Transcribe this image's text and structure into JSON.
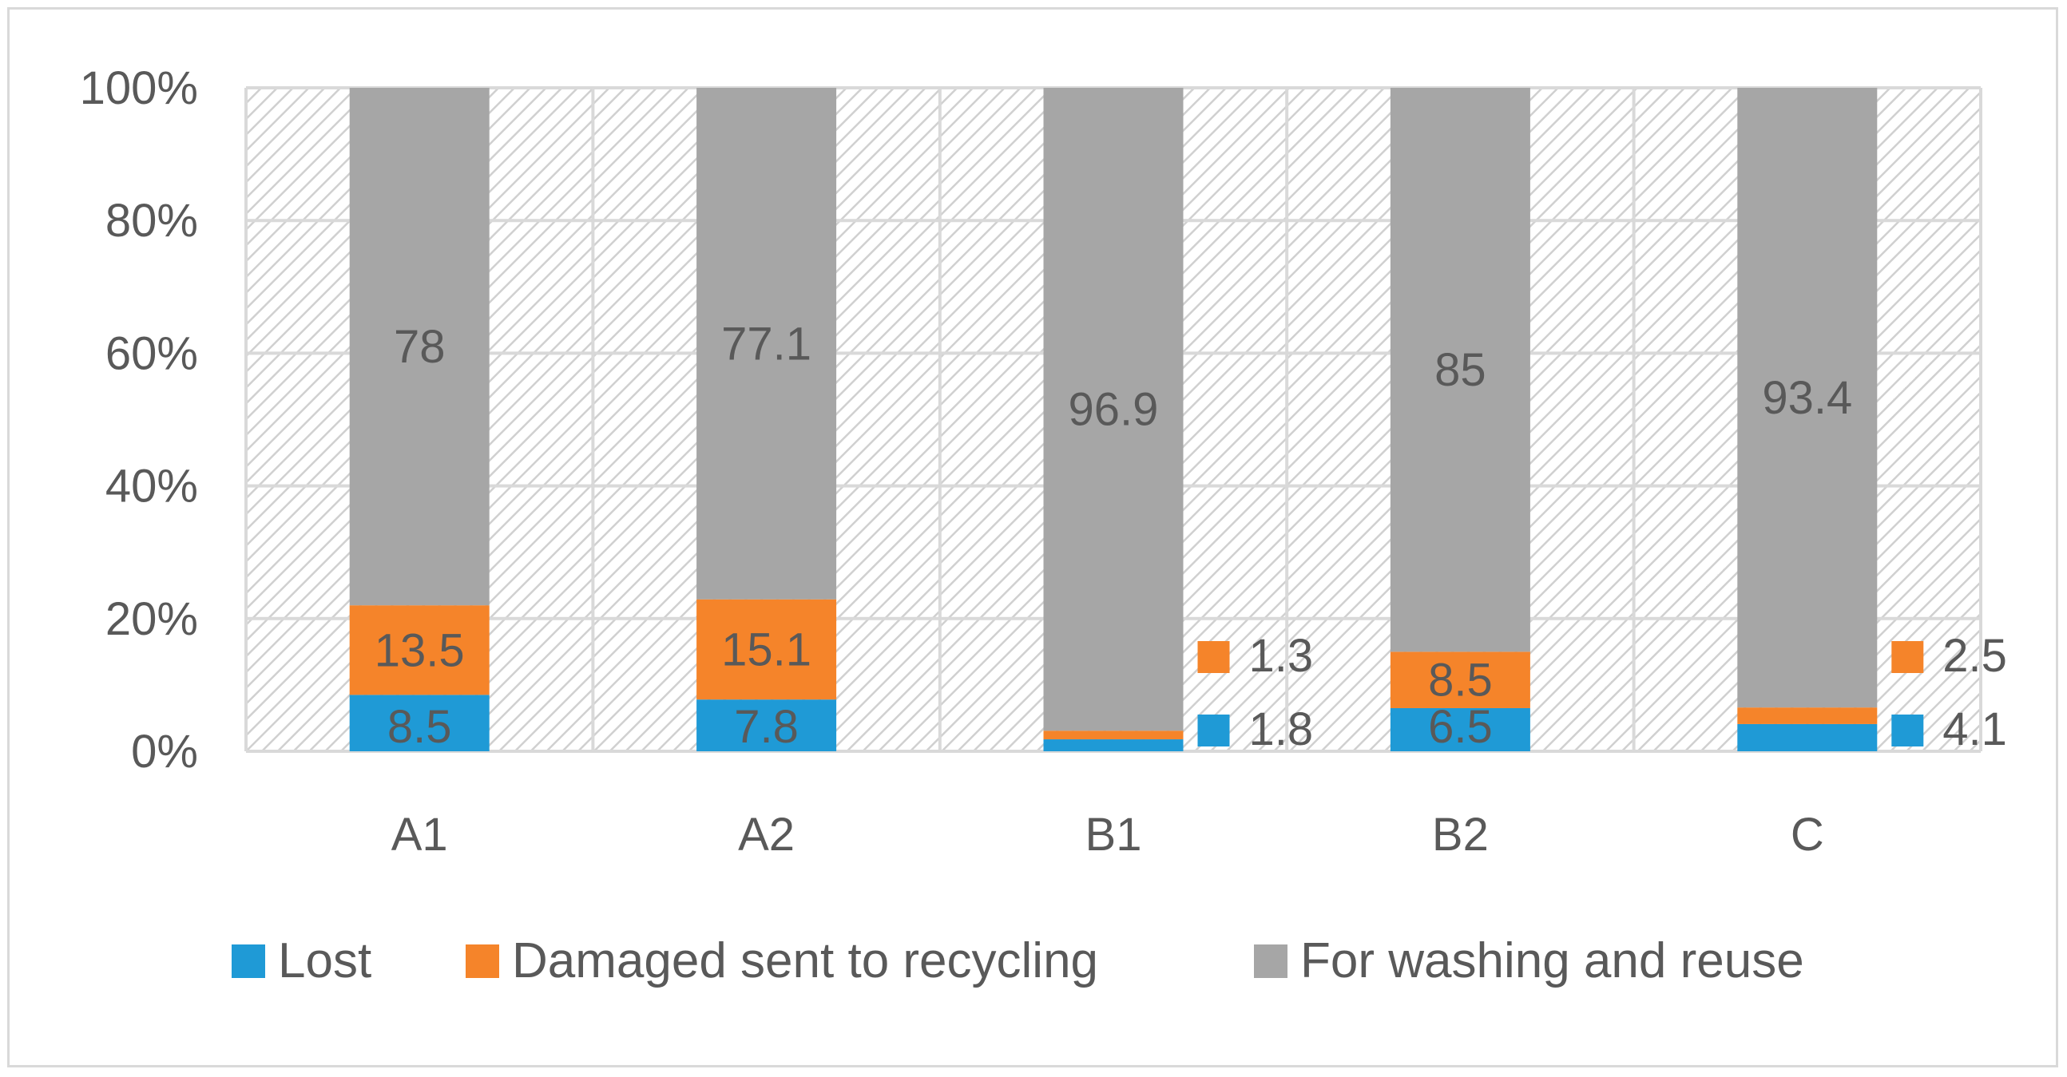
{
  "chart_data": {
    "type": "bar",
    "stacked": true,
    "normalized_percent": true,
    "title": "",
    "xlabel": "",
    "ylabel": "",
    "categories": [
      "A1",
      "A2",
      "B1",
      "B2",
      "C"
    ],
    "y_ticks": [
      "0%",
      "20%",
      "40%",
      "60%",
      "80%",
      "100%"
    ],
    "ylim": [
      0,
      100
    ],
    "grid": true,
    "legend_position": "bottom",
    "series": [
      {
        "name": "Lost",
        "color": "#1f9ad6",
        "values": [
          8.5,
          7.8,
          1.8,
          6.5,
          4.1
        ],
        "labels": [
          "8.5",
          "7.8",
          "1.8",
          "6.5",
          "4.1"
        ]
      },
      {
        "name": "Damaged sent to recycling",
        "color": "#f5842a",
        "values": [
          13.5,
          15.1,
          1.3,
          8.5,
          2.5
        ],
        "labels": [
          "13.5",
          "15.1",
          "1.3",
          "8.5",
          "2.5"
        ]
      },
      {
        "name": "For washing and reuse",
        "color": "#a6a6a6",
        "values": [
          78,
          77.1,
          96.9,
          85,
          93.4
        ],
        "labels": [
          "78",
          "77.1",
          "96.9",
          "85",
          "93.4"
        ]
      }
    ],
    "plot_background": "hatched light gray",
    "label_color": "#595959"
  }
}
